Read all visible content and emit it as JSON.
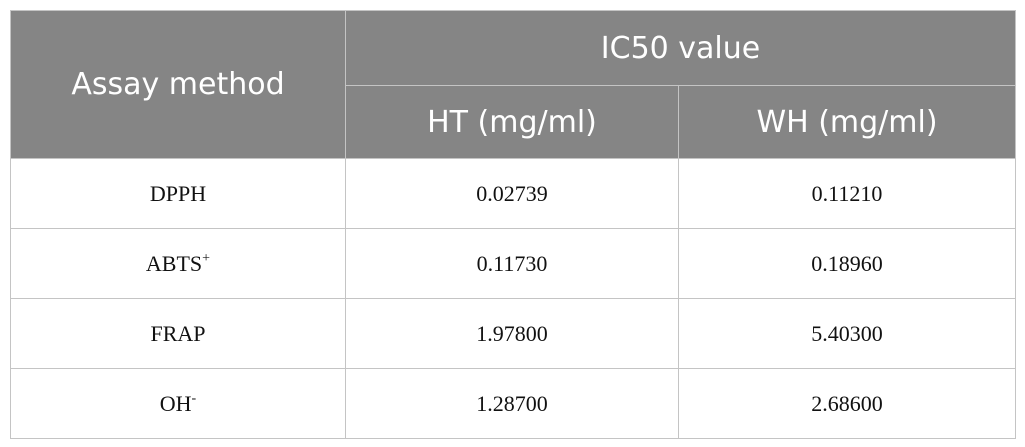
{
  "table": {
    "header": {
      "row_label": "Assay method",
      "group": "IC50 value",
      "columns": [
        "HT (mg/ml)",
        "WH (mg/ml)"
      ]
    },
    "rows": [
      [
        {
          "base": "DPPH"
        },
        "0.02739",
        "0.11210"
      ],
      [
        {
          "base": "ABTS",
          "sup": "+"
        },
        "0.11730",
        "0.18960"
      ],
      [
        {
          "base": "FRAP"
        },
        "1.97800",
        "5.40300"
      ],
      [
        {
          "base": "OH",
          "sup": "-"
        },
        "1.28700",
        "2.68600"
      ]
    ]
  }
}
